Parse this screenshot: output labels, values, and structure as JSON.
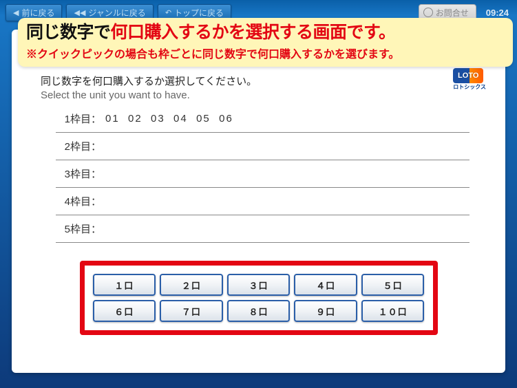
{
  "topbar": {
    "back_label": "前に戻る",
    "genre_label": "ジャンルに戻る",
    "top_label": "トップに戻る",
    "contact_label": "お問合せ",
    "clock": "09:24"
  },
  "banner": {
    "title_dark": "同じ数字で",
    "title_red": "何口購入するかを選択する画面です。",
    "sub": "※クイックピックの場合も枠ごとに同じ数字で何口購入するかを選びます。"
  },
  "logo": {
    "mark_text": "LOTO",
    "text": "ロトシックス"
  },
  "instructions": {
    "ja": "同じ数字を何口購入するか選択してください。",
    "en": "Select the unit you want to have."
  },
  "slots": [
    {
      "label": "1枠目：",
      "numbers": "01  02  03  04  05  06"
    },
    {
      "label": "2枠目：",
      "numbers": ""
    },
    {
      "label": "3枠目：",
      "numbers": ""
    },
    {
      "label": "4枠目：",
      "numbers": ""
    },
    {
      "label": "5枠目：",
      "numbers": ""
    }
  ],
  "keypad": {
    "buttons": [
      "１口",
      "２口",
      "３口",
      "４口",
      "５口",
      "６口",
      "７口",
      "８口",
      "９口",
      "１０口"
    ]
  },
  "colors": {
    "accent_red": "#e30613",
    "banner_bg": "#fff6b8",
    "button_border": "#2a5ea8",
    "bg_top": "#0a5fa8"
  }
}
